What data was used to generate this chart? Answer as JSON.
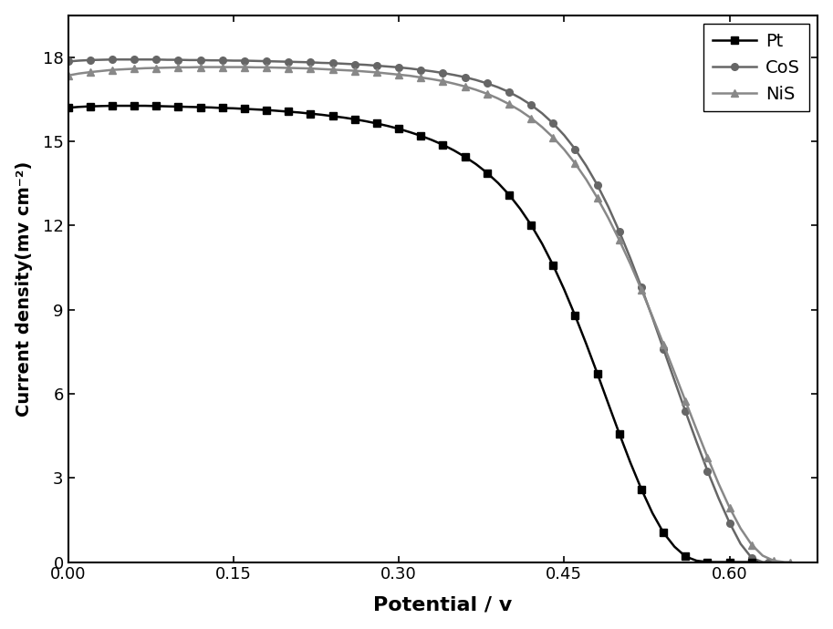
{
  "title": "",
  "xlabel": "Potential / v",
  "ylabel": "Current density(mv cm⁻²)",
  "xlim": [
    0.0,
    0.68
  ],
  "ylim": [
    0.0,
    19.5
  ],
  "yticks": [
    0,
    3,
    6,
    9,
    12,
    15,
    18
  ],
  "xticks": [
    0.0,
    0.15,
    0.3,
    0.45,
    0.6
  ],
  "Pt_color": "#000000",
  "CoS_color": "#666666",
  "NiS_color": "#888888",
  "Pt_x": [
    0.0,
    0.01,
    0.02,
    0.03,
    0.04,
    0.05,
    0.06,
    0.07,
    0.08,
    0.09,
    0.1,
    0.11,
    0.12,
    0.13,
    0.14,
    0.15,
    0.16,
    0.17,
    0.18,
    0.19,
    0.2,
    0.21,
    0.22,
    0.23,
    0.24,
    0.25,
    0.26,
    0.27,
    0.28,
    0.29,
    0.3,
    0.31,
    0.32,
    0.33,
    0.34,
    0.35,
    0.36,
    0.37,
    0.38,
    0.39,
    0.4,
    0.41,
    0.42,
    0.43,
    0.44,
    0.45,
    0.46,
    0.47,
    0.48,
    0.49,
    0.5,
    0.51,
    0.52,
    0.53,
    0.54,
    0.55,
    0.56,
    0.57,
    0.58,
    0.59,
    0.6,
    0.61,
    0.62,
    0.625
  ],
  "Pt_y": [
    16.2,
    16.23,
    16.25,
    16.26,
    16.27,
    16.27,
    16.27,
    16.27,
    16.26,
    16.25,
    16.24,
    16.23,
    16.22,
    16.21,
    16.19,
    16.18,
    16.16,
    16.14,
    16.12,
    16.09,
    16.06,
    16.03,
    15.99,
    15.95,
    15.9,
    15.85,
    15.79,
    15.72,
    15.64,
    15.55,
    15.45,
    15.33,
    15.2,
    15.05,
    14.88,
    14.68,
    14.45,
    14.19,
    13.88,
    13.52,
    13.1,
    12.6,
    12.02,
    11.35,
    10.58,
    9.72,
    8.78,
    7.78,
    6.73,
    5.65,
    4.58,
    3.55,
    2.6,
    1.75,
    1.05,
    0.55,
    0.2,
    0.05,
    0.0,
    0.0,
    0.0,
    0.0,
    0.0,
    0.0
  ],
  "CoS_x": [
    0.0,
    0.01,
    0.02,
    0.03,
    0.04,
    0.05,
    0.06,
    0.07,
    0.08,
    0.09,
    0.1,
    0.11,
    0.12,
    0.13,
    0.14,
    0.15,
    0.16,
    0.17,
    0.18,
    0.19,
    0.2,
    0.21,
    0.22,
    0.23,
    0.24,
    0.25,
    0.26,
    0.27,
    0.28,
    0.29,
    0.3,
    0.31,
    0.32,
    0.33,
    0.34,
    0.35,
    0.36,
    0.37,
    0.38,
    0.39,
    0.4,
    0.41,
    0.42,
    0.43,
    0.44,
    0.45,
    0.46,
    0.47,
    0.48,
    0.49,
    0.5,
    0.51,
    0.52,
    0.53,
    0.54,
    0.55,
    0.56,
    0.57,
    0.58,
    0.59,
    0.6,
    0.61,
    0.62,
    0.63,
    0.635
  ],
  "CoS_y": [
    17.85,
    17.88,
    17.9,
    17.91,
    17.92,
    17.92,
    17.92,
    17.92,
    17.92,
    17.91,
    17.91,
    17.9,
    17.9,
    17.89,
    17.89,
    17.88,
    17.88,
    17.87,
    17.86,
    17.85,
    17.84,
    17.83,
    17.82,
    17.8,
    17.79,
    17.77,
    17.75,
    17.73,
    17.7,
    17.67,
    17.64,
    17.6,
    17.55,
    17.5,
    17.44,
    17.37,
    17.29,
    17.19,
    17.07,
    16.93,
    16.76,
    16.55,
    16.3,
    16.0,
    15.64,
    15.22,
    14.72,
    14.13,
    13.45,
    12.67,
    11.79,
    10.83,
    9.8,
    8.72,
    7.6,
    6.48,
    5.37,
    4.29,
    3.25,
    2.28,
    1.4,
    0.65,
    0.15,
    0.0,
    0.0
  ],
  "NiS_x": [
    0.0,
    0.01,
    0.02,
    0.03,
    0.04,
    0.05,
    0.06,
    0.07,
    0.08,
    0.09,
    0.1,
    0.11,
    0.12,
    0.13,
    0.14,
    0.15,
    0.16,
    0.17,
    0.18,
    0.19,
    0.2,
    0.21,
    0.22,
    0.23,
    0.24,
    0.25,
    0.26,
    0.27,
    0.28,
    0.29,
    0.3,
    0.31,
    0.32,
    0.33,
    0.34,
    0.35,
    0.36,
    0.37,
    0.38,
    0.39,
    0.4,
    0.41,
    0.42,
    0.43,
    0.44,
    0.45,
    0.46,
    0.47,
    0.48,
    0.49,
    0.5,
    0.51,
    0.52,
    0.53,
    0.54,
    0.55,
    0.56,
    0.57,
    0.58,
    0.59,
    0.6,
    0.61,
    0.62,
    0.63,
    0.64,
    0.65,
    0.655
  ],
  "NiS_y": [
    17.35,
    17.42,
    17.47,
    17.51,
    17.55,
    17.57,
    17.59,
    17.61,
    17.62,
    17.63,
    17.64,
    17.64,
    17.65,
    17.65,
    17.65,
    17.65,
    17.65,
    17.64,
    17.64,
    17.63,
    17.62,
    17.61,
    17.6,
    17.58,
    17.56,
    17.54,
    17.52,
    17.49,
    17.46,
    17.42,
    17.38,
    17.34,
    17.28,
    17.22,
    17.15,
    17.06,
    16.96,
    16.84,
    16.7,
    16.53,
    16.33,
    16.1,
    15.83,
    15.51,
    15.14,
    14.71,
    14.21,
    13.64,
    12.99,
    12.27,
    11.48,
    10.63,
    9.72,
    8.76,
    7.77,
    6.76,
    5.74,
    4.73,
    3.74,
    2.8,
    1.94,
    1.2,
    0.62,
    0.23,
    0.05,
    0.0,
    0.0
  ],
  "legend_labels": [
    "Pt",
    "CoS",
    "NiS"
  ],
  "marker_Pt": "s",
  "marker_CoS": "o",
  "marker_NiS": "^",
  "linewidth": 1.8,
  "markersize": 5.5,
  "marker_every": 2
}
